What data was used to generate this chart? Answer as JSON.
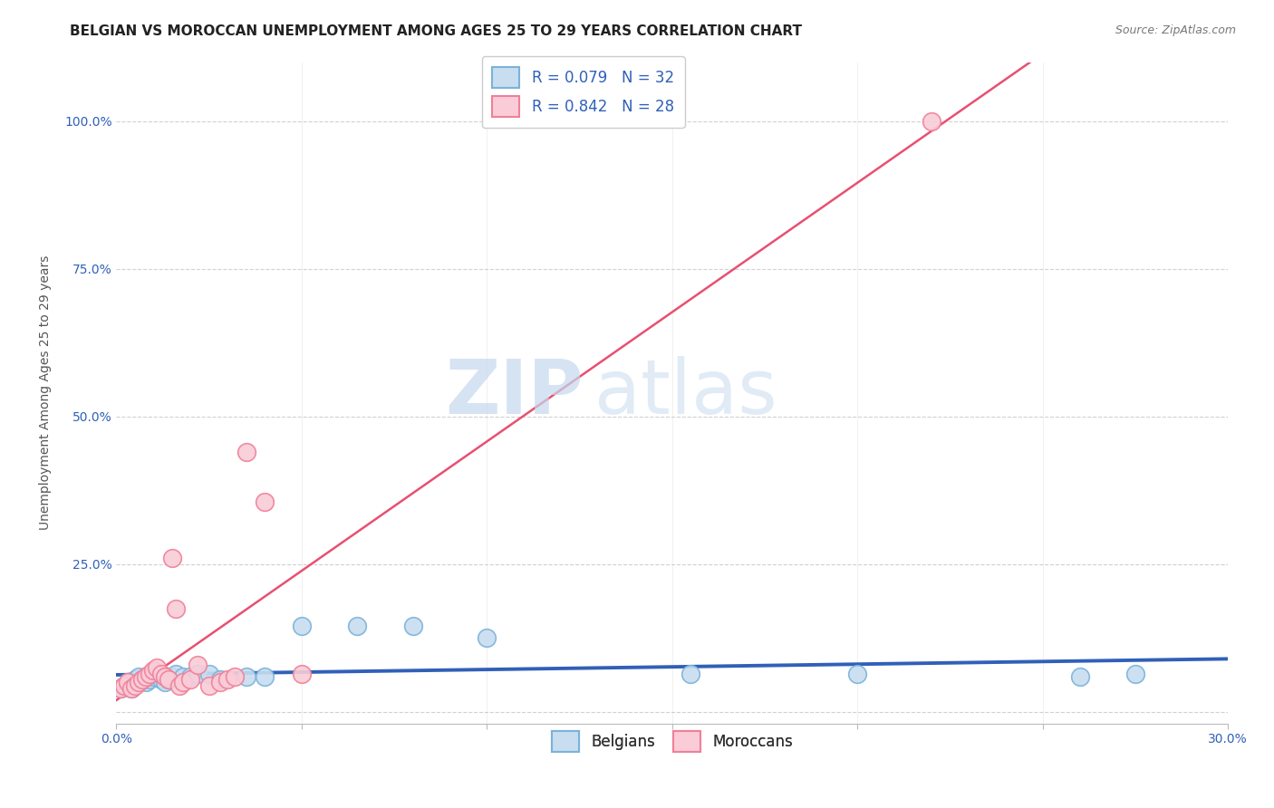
{
  "title": "BELGIAN VS MOROCCAN UNEMPLOYMENT AMONG AGES 25 TO 29 YEARS CORRELATION CHART",
  "source": "Source: ZipAtlas.com",
  "ylabel": "Unemployment Among Ages 25 to 29 years",
  "xlim": [
    0.0,
    0.3
  ],
  "ylim": [
    -0.02,
    1.1
  ],
  "yticks": [
    0.0,
    0.25,
    0.5,
    0.75,
    1.0
  ],
  "ytick_labels": [
    "",
    "25.0%",
    "50.0%",
    "75.0%",
    "100.0%"
  ],
  "xtick_labels": [
    "0.0%",
    "",
    "",
    "",
    "",
    "",
    "30.0%"
  ],
  "xticks": [
    0.0,
    0.05,
    0.1,
    0.15,
    0.2,
    0.25,
    0.3
  ],
  "watermark_zip": "ZIP",
  "watermark_atlas": "atlas",
  "belgian_scatter_face": "#c8ddf0",
  "belgian_scatter_edge": "#7ab3d9",
  "moroccan_scatter_face": "#f9ccd8",
  "moroccan_scatter_edge": "#f08098",
  "belgian_line_color": "#3060b8",
  "moroccan_line_color": "#e85070",
  "background_color": "#ffffff",
  "grid_color": "#cccccc",
  "title_color": "#222222",
  "source_color": "#777777",
  "ylabel_color": "#555555",
  "tick_color": "#3060b8",
  "legend_edge_color": "#cccccc",
  "legend_r_n_color": "#3060b8",
  "belgians_x": [
    0.001,
    0.002,
    0.003,
    0.004,
    0.005,
    0.005,
    0.006,
    0.007,
    0.008,
    0.009,
    0.01,
    0.011,
    0.012,
    0.013,
    0.014,
    0.015,
    0.016,
    0.018,
    0.02,
    0.022,
    0.025,
    0.028,
    0.035,
    0.04,
    0.05,
    0.065,
    0.08,
    0.1,
    0.155,
    0.2,
    0.26,
    0.275
  ],
  "belgians_y": [
    0.04,
    0.045,
    0.05,
    0.04,
    0.05,
    0.055,
    0.06,
    0.055,
    0.05,
    0.055,
    0.06,
    0.065,
    0.055,
    0.05,
    0.055,
    0.06,
    0.065,
    0.06,
    0.06,
    0.065,
    0.065,
    0.055,
    0.06,
    0.06,
    0.145,
    0.145,
    0.145,
    0.125,
    0.065,
    0.065,
    0.06,
    0.065
  ],
  "moroccans_x": [
    0.001,
    0.002,
    0.003,
    0.004,
    0.005,
    0.006,
    0.007,
    0.008,
    0.009,
    0.01,
    0.011,
    0.012,
    0.013,
    0.014,
    0.015,
    0.016,
    0.017,
    0.018,
    0.02,
    0.022,
    0.025,
    0.028,
    0.03,
    0.032,
    0.035,
    0.04,
    0.05,
    0.22
  ],
  "moroccans_y": [
    0.04,
    0.045,
    0.05,
    0.04,
    0.045,
    0.05,
    0.055,
    0.06,
    0.065,
    0.07,
    0.075,
    0.065,
    0.06,
    0.055,
    0.26,
    0.175,
    0.045,
    0.05,
    0.055,
    0.08,
    0.045,
    0.05,
    0.055,
    0.06,
    0.44,
    0.355,
    0.065,
    1.0
  ],
  "title_fontsize": 11,
  "source_fontsize": 9,
  "axis_label_fontsize": 10,
  "tick_fontsize": 10,
  "legend_fontsize": 12,
  "watermark_fontsize_zip": 60,
  "watermark_fontsize_atlas": 60
}
